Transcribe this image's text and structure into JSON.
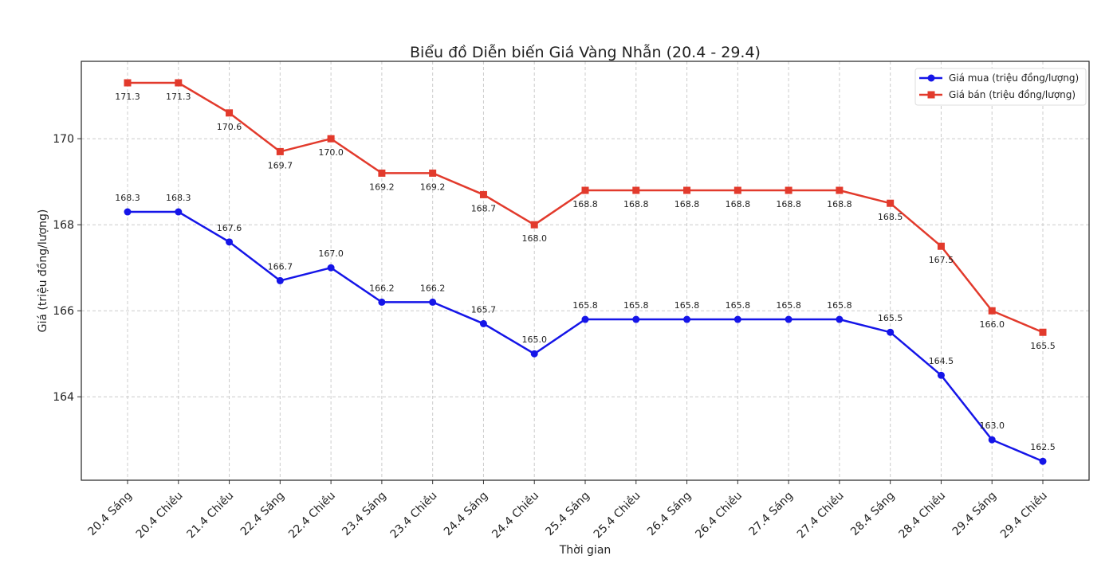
{
  "chart_data": {
    "type": "line",
    "title": "Biểu đồ Diễn biến Giá Vàng Nhẫn (20.4 - 29.4)",
    "xlabel": "Thời gian",
    "ylabel": "Giá (triệu đồng/lượng)",
    "ylim": [
      162.06,
      171.8
    ],
    "yticks": [
      164,
      166,
      168,
      170
    ],
    "grid": true,
    "legend_position": "top-right",
    "categories": [
      "20.4 Sáng",
      "20.4 Chiều",
      "21.4 Chiều",
      "22.4 Sáng",
      "22.4 Chiều",
      "23.4 Sáng",
      "23.4 Chiều",
      "24.4 Sáng",
      "24.4 Chiều",
      "25.4 Sáng",
      "25.4 Chiều",
      "26.4 Sáng",
      "26.4 Chiều",
      "27.4 Sáng",
      "27.4 Chiều",
      "28.4 Sáng",
      "28.4 Chiều",
      "29.4 Sáng",
      "29.4 Chiều"
    ],
    "series": [
      {
        "name": "Giá mua (triệu đồng/lượng)",
        "color": "#1515e8",
        "marker": "circle",
        "label_position": "above",
        "values": [
          168.3,
          168.3,
          167.6,
          166.7,
          167.0,
          166.2,
          166.2,
          165.7,
          165.0,
          165.8,
          165.8,
          165.8,
          165.8,
          165.8,
          165.8,
          165.5,
          164.5,
          163.0,
          162.5
        ]
      },
      {
        "name": "Giá bán (triệu đồng/lượng)",
        "color": "#e23a2c",
        "marker": "square",
        "label_position": "below",
        "values": [
          171.3,
          171.3,
          170.6,
          169.7,
          170.0,
          169.2,
          169.2,
          168.7,
          168.0,
          168.8,
          168.8,
          168.8,
          168.8,
          168.8,
          168.8,
          168.5,
          167.5,
          166.0,
          165.5
        ]
      }
    ]
  }
}
